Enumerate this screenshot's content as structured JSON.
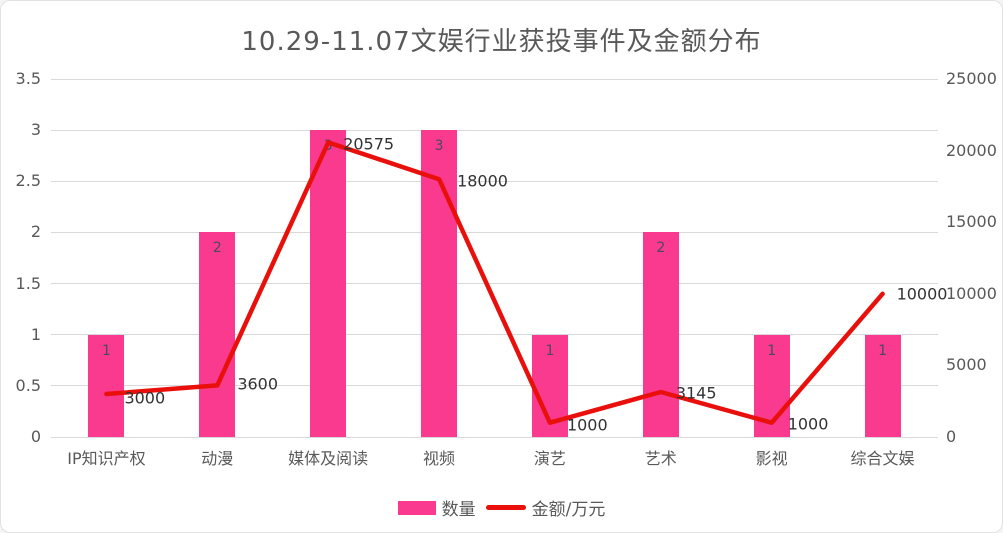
{
  "title": "10.29-11.07文娱行业获投事件及金额分布",
  "legend": {
    "items": [
      {
        "label": "数量",
        "swatch": "bar-swatch"
      },
      {
        "label": "金额/万元",
        "swatch": "line-swatch"
      }
    ]
  },
  "colors": {
    "bar": "#fa3a8e",
    "line": "#e9100c",
    "grid": "#d9d9d9",
    "axis_text": "#595959",
    "title_text": "#595959",
    "bar_label": "#464a63",
    "line_label": "#333333"
  },
  "chart_data": {
    "type": "bar+line",
    "title": "10.29-11.07文娱行业获投事件及金额分布",
    "categories": [
      "IP知识产权",
      "动漫",
      "媒体及阅读",
      "视频",
      "演艺",
      "艺术",
      "影视",
      "综合文娱"
    ],
    "series": [
      {
        "name": "数量",
        "type": "bar",
        "axis": "left",
        "values": [
          1,
          2,
          3,
          3,
          1,
          2,
          1,
          1
        ]
      },
      {
        "name": "金额/万元",
        "type": "line",
        "axis": "right",
        "values": [
          3000,
          3600,
          20575,
          18000,
          1000,
          3145,
          1000,
          10000
        ]
      }
    ],
    "left_axis": {
      "min": 0,
      "max": 3.5,
      "step": 0.5,
      "ticks": [
        "0",
        "0.5",
        "1",
        "1.5",
        "2",
        "2.5",
        "3",
        "3.5"
      ]
    },
    "right_axis": {
      "min": 0,
      "max": 25000,
      "step": 5000,
      "ticks": [
        "0",
        "5000",
        "10000",
        "15000",
        "20000",
        "25000"
      ]
    },
    "grid": true,
    "legend_position": "bottom"
  }
}
